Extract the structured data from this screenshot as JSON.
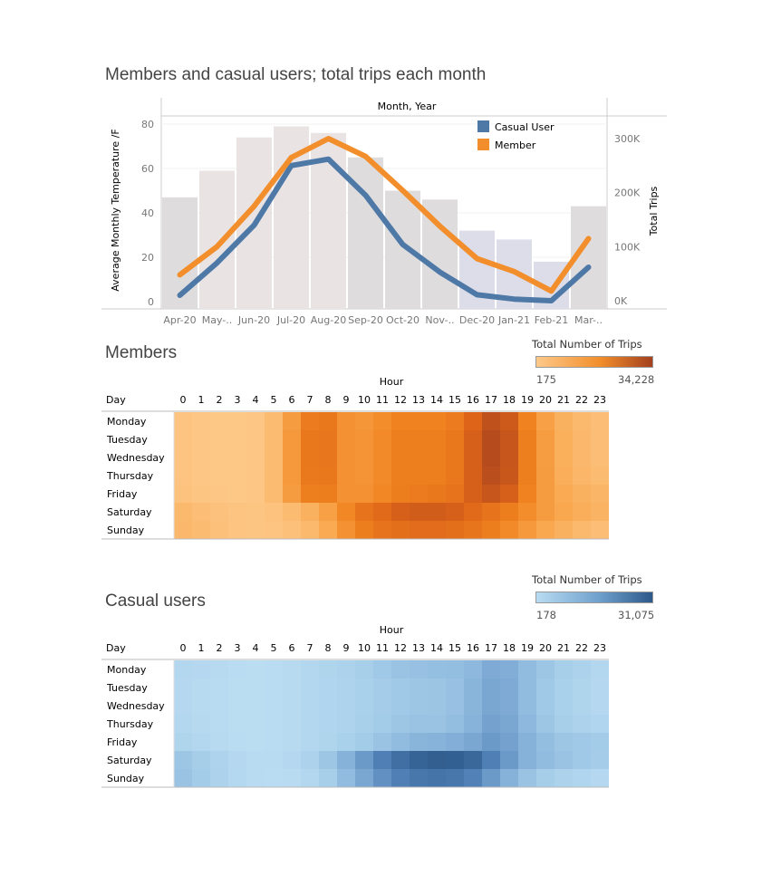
{
  "colors": {
    "casual_line": "#4e79a7",
    "member_line": "#f28e2b",
    "bar_gray": "#dedcdc",
    "bar_pink": "#e9e3e3",
    "bar_lavender": "#dcdde9",
    "members_low": "#fdc98a",
    "members_high": "#a3401f",
    "casual_low": "#b8dcf2",
    "casual_high": "#2c5889"
  },
  "chart_data": [
    {
      "type": "bar+line",
      "title": "Members and casual users; total trips each month",
      "header": "Month, Year",
      "ylabel_left": "Average Monthly Temperature /F",
      "ylabel_right": "Total Trips",
      "ylim_left": [
        0,
        80
      ],
      "ylim_right": [
        0,
        350000
      ],
      "left_ticks": [
        "80",
        "60",
        "40",
        "20",
        "0"
      ],
      "right_ticks": [
        "300K",
        "200K",
        "100K",
        "0K"
      ],
      "categories": [
        "Apr-20",
        "May-..",
        "Jun-20",
        "Jul-20",
        "Aug-20",
        "Sep-20",
        "Oct-20",
        "Nov-..",
        "Dec-20",
        "Jan-21",
        "Feb-21",
        "Mar-.."
      ],
      "temperature": [
        47,
        59,
        74,
        79,
        76,
        65,
        50,
        46,
        32,
        28,
        18,
        43
      ],
      "bar_tones": [
        "gray",
        "pink",
        "pink",
        "pink",
        "pink",
        "gray",
        "gray",
        "gray",
        "lavender",
        "lavender",
        "lavender",
        "gray"
      ],
      "legend_position": "top-right",
      "series": [
        {
          "name": "Casual User",
          "values": [
            10000,
            70000,
            140000,
            250000,
            262000,
            195000,
            104000,
            53000,
            11000,
            3000,
            0,
            62000
          ]
        },
        {
          "name": "Member",
          "values": [
            48000,
            100000,
            175000,
            265000,
            300000,
            267000,
            204000,
            138000,
            78000,
            54000,
            18000,
            115000
          ]
        }
      ]
    },
    {
      "type": "heatmap",
      "title": "Members",
      "xlabel": "Hour",
      "ylabel": "Day",
      "legend_title": "Total Number of Trips",
      "min_label": "175",
      "max_label": "34,228",
      "hours": [
        "0",
        "1",
        "2",
        "3",
        "4",
        "5",
        "6",
        "7",
        "8",
        "9",
        "10",
        "11",
        "12",
        "13",
        "14",
        "15",
        "16",
        "17",
        "18",
        "19",
        "20",
        "21",
        "22",
        "23"
      ],
      "days": [
        "Monday",
        "Tuesday",
        "Wednesday",
        "Thursday",
        "Friday",
        "Saturday",
        "Sunday"
      ],
      "intensity": [
        [
          0.05,
          0.03,
          0.02,
          0.02,
          0.03,
          0.12,
          0.38,
          0.6,
          0.62,
          0.45,
          0.42,
          0.48,
          0.55,
          0.55,
          0.55,
          0.6,
          0.75,
          0.88,
          0.82,
          0.55,
          0.35,
          0.22,
          0.15,
          0.1
        ],
        [
          0.05,
          0.03,
          0.02,
          0.02,
          0.03,
          0.13,
          0.4,
          0.62,
          0.63,
          0.45,
          0.43,
          0.5,
          0.57,
          0.57,
          0.57,
          0.62,
          0.78,
          0.92,
          0.85,
          0.57,
          0.37,
          0.24,
          0.16,
          0.1
        ],
        [
          0.05,
          0.03,
          0.02,
          0.02,
          0.03,
          0.13,
          0.4,
          0.62,
          0.63,
          0.45,
          0.43,
          0.5,
          0.57,
          0.57,
          0.57,
          0.62,
          0.78,
          0.92,
          0.85,
          0.57,
          0.37,
          0.24,
          0.16,
          0.1
        ],
        [
          0.05,
          0.03,
          0.02,
          0.02,
          0.03,
          0.13,
          0.4,
          0.61,
          0.62,
          0.45,
          0.43,
          0.5,
          0.57,
          0.57,
          0.57,
          0.62,
          0.78,
          0.9,
          0.84,
          0.57,
          0.38,
          0.25,
          0.17,
          0.12
        ],
        [
          0.06,
          0.04,
          0.03,
          0.02,
          0.03,
          0.12,
          0.38,
          0.57,
          0.58,
          0.45,
          0.45,
          0.52,
          0.58,
          0.6,
          0.62,
          0.65,
          0.78,
          0.85,
          0.78,
          0.55,
          0.38,
          0.28,
          0.22,
          0.18
        ],
        [
          0.15,
          0.1,
          0.07,
          0.05,
          0.04,
          0.06,
          0.12,
          0.22,
          0.35,
          0.52,
          0.65,
          0.72,
          0.78,
          0.8,
          0.8,
          0.78,
          0.72,
          0.65,
          0.58,
          0.48,
          0.38,
          0.3,
          0.25,
          0.2
        ],
        [
          0.16,
          0.12,
          0.08,
          0.05,
          0.04,
          0.05,
          0.08,
          0.15,
          0.28,
          0.45,
          0.58,
          0.65,
          0.68,
          0.7,
          0.7,
          0.68,
          0.64,
          0.58,
          0.5,
          0.4,
          0.3,
          0.22,
          0.15,
          0.1
        ]
      ]
    },
    {
      "type": "heatmap",
      "title": "Casual users",
      "xlabel": "Hour",
      "ylabel": "Day",
      "legend_title": "Total Number of Trips",
      "min_label": "178",
      "max_label": "31,075",
      "hours": [
        "0",
        "1",
        "2",
        "3",
        "4",
        "5",
        "6",
        "7",
        "8",
        "9",
        "10",
        "11",
        "12",
        "13",
        "14",
        "15",
        "16",
        "17",
        "18",
        "19",
        "20",
        "21",
        "22",
        "23"
      ],
      "days": [
        "Monday",
        "Tuesday",
        "Wednesday",
        "Thursday",
        "Friday",
        "Saturday",
        "Sunday"
      ],
      "intensity": [
        [
          0.12,
          0.1,
          0.08,
          0.05,
          0.04,
          0.05,
          0.08,
          0.12,
          0.15,
          0.18,
          0.22,
          0.28,
          0.32,
          0.34,
          0.35,
          0.36,
          0.4,
          0.5,
          0.48,
          0.38,
          0.3,
          0.22,
          0.18,
          0.12
        ],
        [
          0.1,
          0.08,
          0.06,
          0.04,
          0.04,
          0.05,
          0.08,
          0.12,
          0.14,
          0.16,
          0.2,
          0.25,
          0.28,
          0.3,
          0.31,
          0.34,
          0.42,
          0.52,
          0.5,
          0.38,
          0.28,
          0.2,
          0.15,
          0.1
        ],
        [
          0.1,
          0.08,
          0.06,
          0.04,
          0.04,
          0.05,
          0.08,
          0.12,
          0.14,
          0.16,
          0.2,
          0.25,
          0.28,
          0.3,
          0.31,
          0.34,
          0.42,
          0.52,
          0.5,
          0.38,
          0.28,
          0.2,
          0.15,
          0.1
        ],
        [
          0.12,
          0.09,
          0.06,
          0.04,
          0.04,
          0.05,
          0.08,
          0.12,
          0.14,
          0.17,
          0.21,
          0.26,
          0.3,
          0.32,
          0.33,
          0.36,
          0.44,
          0.55,
          0.52,
          0.4,
          0.3,
          0.23,
          0.18,
          0.14
        ],
        [
          0.15,
          0.12,
          0.08,
          0.05,
          0.04,
          0.05,
          0.08,
          0.12,
          0.15,
          0.2,
          0.26,
          0.33,
          0.38,
          0.42,
          0.44,
          0.47,
          0.52,
          0.6,
          0.55,
          0.45,
          0.36,
          0.3,
          0.28,
          0.26
        ],
        [
          0.3,
          0.24,
          0.16,
          0.1,
          0.06,
          0.06,
          0.1,
          0.18,
          0.3,
          0.45,
          0.6,
          0.75,
          0.85,
          0.92,
          0.96,
          0.95,
          0.9,
          0.75,
          0.6,
          0.45,
          0.38,
          0.32,
          0.28,
          0.25
        ],
        [
          0.32,
          0.26,
          0.18,
          0.11,
          0.06,
          0.05,
          0.07,
          0.12,
          0.22,
          0.38,
          0.52,
          0.65,
          0.75,
          0.8,
          0.82,
          0.8,
          0.74,
          0.6,
          0.45,
          0.32,
          0.24,
          0.18,
          0.14,
          0.1
        ]
      ]
    }
  ]
}
